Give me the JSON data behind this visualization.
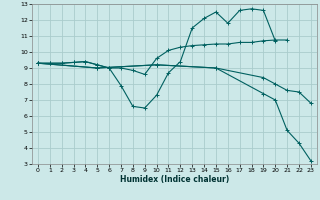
{
  "xlabel": "Humidex (Indice chaleur)",
  "xlim": [
    -0.5,
    23.5
  ],
  "ylim": [
    3,
    13
  ],
  "xticks": [
    0,
    1,
    2,
    3,
    4,
    5,
    6,
    7,
    8,
    9,
    10,
    11,
    12,
    13,
    14,
    15,
    16,
    17,
    18,
    19,
    20,
    21,
    22,
    23
  ],
  "yticks": [
    3,
    4,
    5,
    6,
    7,
    8,
    9,
    10,
    11,
    12,
    13
  ],
  "bg_color": "#cce8e8",
  "grid_color": "#aacccc",
  "line_color": "#006060",
  "lines": [
    {
      "x": [
        0,
        1,
        2,
        3,
        4,
        5,
        6,
        7,
        8,
        9,
        10,
        11,
        12,
        13,
        14,
        15,
        16,
        17,
        18,
        19,
        20
      ],
      "y": [
        9.3,
        9.3,
        9.3,
        9.35,
        9.4,
        9.2,
        9.0,
        7.9,
        6.6,
        6.5,
        7.3,
        8.7,
        9.4,
        11.5,
        12.1,
        12.5,
        11.8,
        12.6,
        12.7,
        12.6,
        10.7
      ]
    },
    {
      "x": [
        0,
        1,
        2,
        3,
        4,
        5,
        6,
        7,
        8,
        9,
        10,
        11,
        12,
        13,
        14,
        15,
        16,
        17,
        18,
        19,
        20,
        21
      ],
      "y": [
        9.3,
        9.3,
        9.3,
        9.35,
        9.4,
        9.2,
        9.0,
        9.0,
        8.85,
        8.6,
        9.6,
        10.1,
        10.3,
        10.4,
        10.45,
        10.5,
        10.5,
        10.6,
        10.6,
        10.7,
        10.75,
        10.75
      ]
    },
    {
      "x": [
        0,
        5,
        10,
        15,
        19,
        20,
        21,
        22,
        23
      ],
      "y": [
        9.3,
        9.0,
        9.2,
        9.0,
        7.4,
        7.0,
        5.1,
        4.3,
        3.2
      ]
    },
    {
      "x": [
        0,
        5,
        10,
        15,
        19,
        20,
        21,
        22,
        23
      ],
      "y": [
        9.3,
        9.0,
        9.2,
        9.0,
        8.4,
        8.0,
        7.6,
        7.5,
        6.8
      ]
    }
  ]
}
